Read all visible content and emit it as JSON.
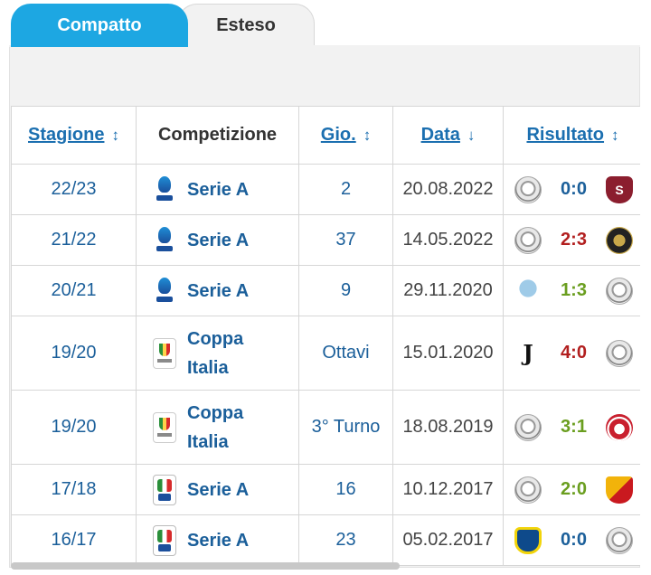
{
  "tabs": {
    "compact": "Compatto",
    "extended": "Esteso"
  },
  "headers": {
    "season": "Stagione",
    "competition": "Competizione",
    "matchday": "Gio.",
    "date": "Data",
    "result": "Risultato"
  },
  "sort_icons": {
    "updown": "↕",
    "down": "↓"
  },
  "rows": [
    {
      "season": "22/23",
      "competition": "Serie A",
      "comp_icon": "serie-a-new-icon",
      "matchday": "2",
      "date": "20.08.2022",
      "home_icon": "udinese-logo",
      "score": "0:0",
      "away_icon": "salernitana-logo",
      "outcome": "draw"
    },
    {
      "season": "21/22",
      "competition": "Serie A",
      "comp_icon": "serie-a-new-icon",
      "matchday": "37",
      "date": "14.05.2022",
      "home_icon": "udinese-logo",
      "score": "2:3",
      "away_icon": "spezia-logo",
      "outcome": "loss"
    },
    {
      "season": "20/21",
      "competition": "Serie A",
      "comp_icon": "serie-a-new-icon",
      "matchday": "9",
      "date": "29.11.2020",
      "home_icon": "lazio-logo",
      "score": "1:3",
      "away_icon": "udinese-logo",
      "outcome": "win"
    },
    {
      "season": "19/20",
      "competition": "Coppa Italia",
      "comp_icon": "coppa-italia-icon",
      "matchday": "Ottavi",
      "date": "15.01.2020",
      "home_icon": "juventus-logo",
      "score": "4:0",
      "away_icon": "udinese-logo",
      "outcome": "loss"
    },
    {
      "season": "19/20",
      "competition": "Coppa Italia",
      "comp_icon": "coppa-italia-icon",
      "matchday": "3° Turno",
      "date": "18.08.2019",
      "home_icon": "udinese-logo",
      "score": "3:1",
      "away_icon": "bari-logo",
      "outcome": "win"
    },
    {
      "season": "17/18",
      "competition": "Serie A",
      "comp_icon": "serie-a-old-icon",
      "matchday": "16",
      "date": "10.12.2017",
      "home_icon": "udinese-logo",
      "score": "2:0",
      "away_icon": "benevento-logo",
      "outcome": "win"
    },
    {
      "season": "16/17",
      "competition": "Serie A",
      "comp_icon": "serie-a-old-icon",
      "matchday": "23",
      "date": "05.02.2017",
      "home_icon": "chievo-logo",
      "score": "0:0",
      "away_icon": "udinese-logo",
      "outcome": "draw"
    }
  ],
  "colors": {
    "accent": "#1da7e2",
    "link": "#1b5f9a",
    "loss": "#b21f1f",
    "win": "#6a9e1f"
  }
}
